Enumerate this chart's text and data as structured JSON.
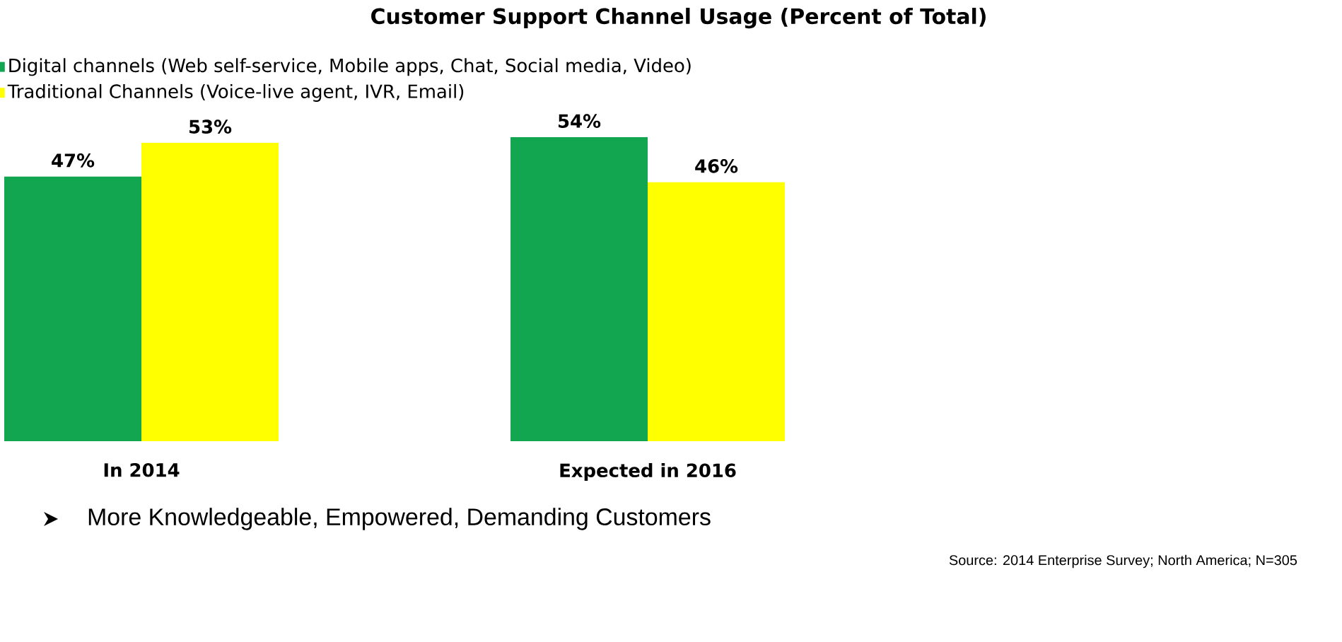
{
  "chart_data": {
    "type": "bar",
    "title": "Customer Support Channel Usage (Percent of Total)",
    "categories": [
      "In 2014",
      "Expected in 2016"
    ],
    "series": [
      {
        "name": "Digital channels (Web self-service, Mobile apps, Chat, Social media, Video)",
        "color": "#12a650",
        "values": [
          47,
          54
        ],
        "value_labels": [
          "47%",
          "54%"
        ]
      },
      {
        "name": "Traditional Channels (Voice-live agent, IVR, Email)",
        "color": "#ffff00",
        "values": [
          53,
          46
        ],
        "value_labels": [
          "53%",
          "46%"
        ]
      }
    ],
    "tick_labels": "x",
    "legend": "top left",
    "annotations": [
      "More Knowledgeable, Empowered, Demanding Customers",
      "Source: 2014 Enterprise Survey; North America; N=305"
    ]
  }
}
